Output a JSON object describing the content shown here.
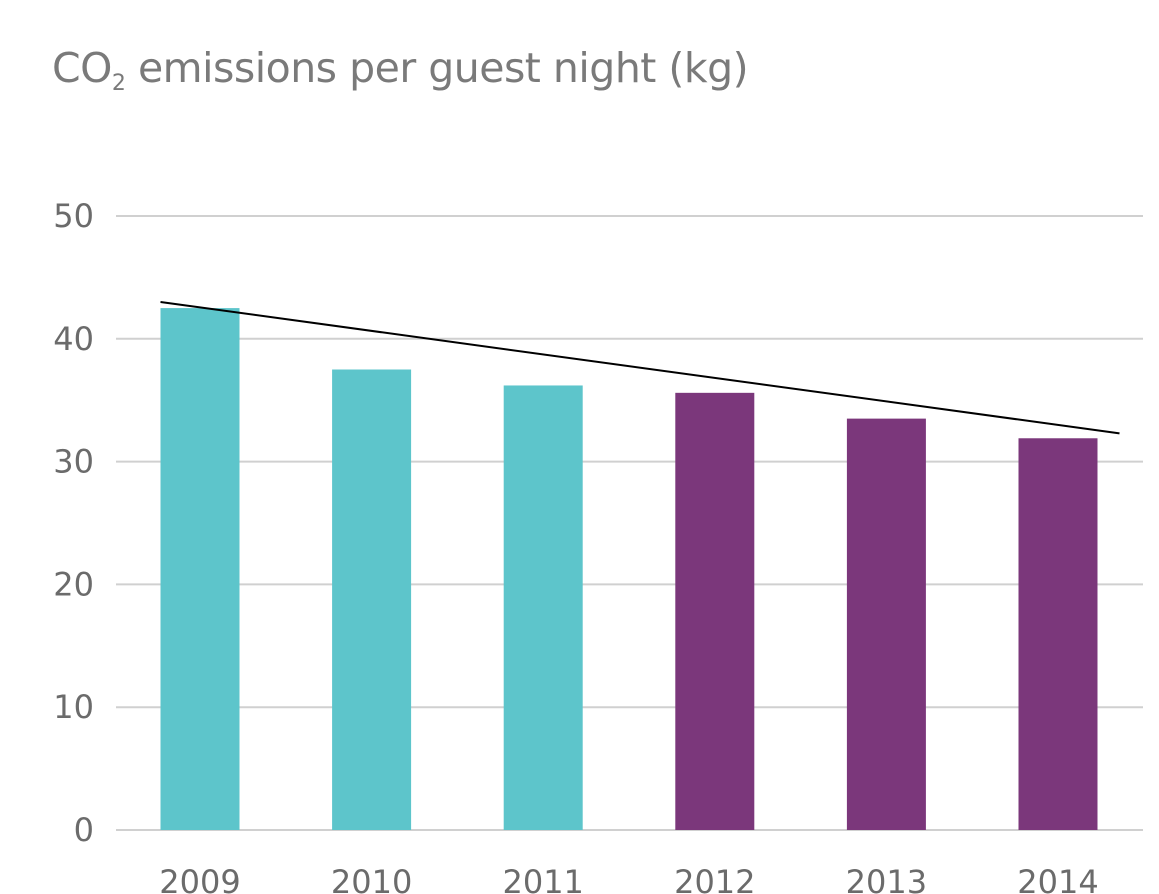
{
  "title": {
    "prefix": "CO",
    "subscript": "2",
    "rest": " emissions per guest night (kg)"
  },
  "chart_data": {
    "type": "bar",
    "title": "CO2 emissions per guest night (kg)",
    "xlabel": "",
    "ylabel": "",
    "categories": [
      "2009",
      "2010",
      "2011",
      "2012",
      "2013",
      "2014"
    ],
    "values": [
      42.5,
      37.5,
      36.2,
      35.6,
      33.5,
      31.9
    ],
    "bar_colors": [
      "#5dc5cb",
      "#5dc5cb",
      "#5dc5cb",
      "#7b377b",
      "#7b377b",
      "#7b377b"
    ],
    "ylim": [
      0,
      50
    ],
    "yticks": [
      0,
      10,
      20,
      30,
      40,
      50
    ],
    "ytick_labels": [
      "0",
      "10",
      "20",
      "30",
      "40",
      "50"
    ],
    "grid": true,
    "gridline_color": "#d0d0d0",
    "trendline": {
      "start": {
        "x": "2009",
        "y": 43.0
      },
      "end": {
        "x": "2014",
        "y": 32.3
      },
      "color": "#000000"
    },
    "legend": "none"
  }
}
